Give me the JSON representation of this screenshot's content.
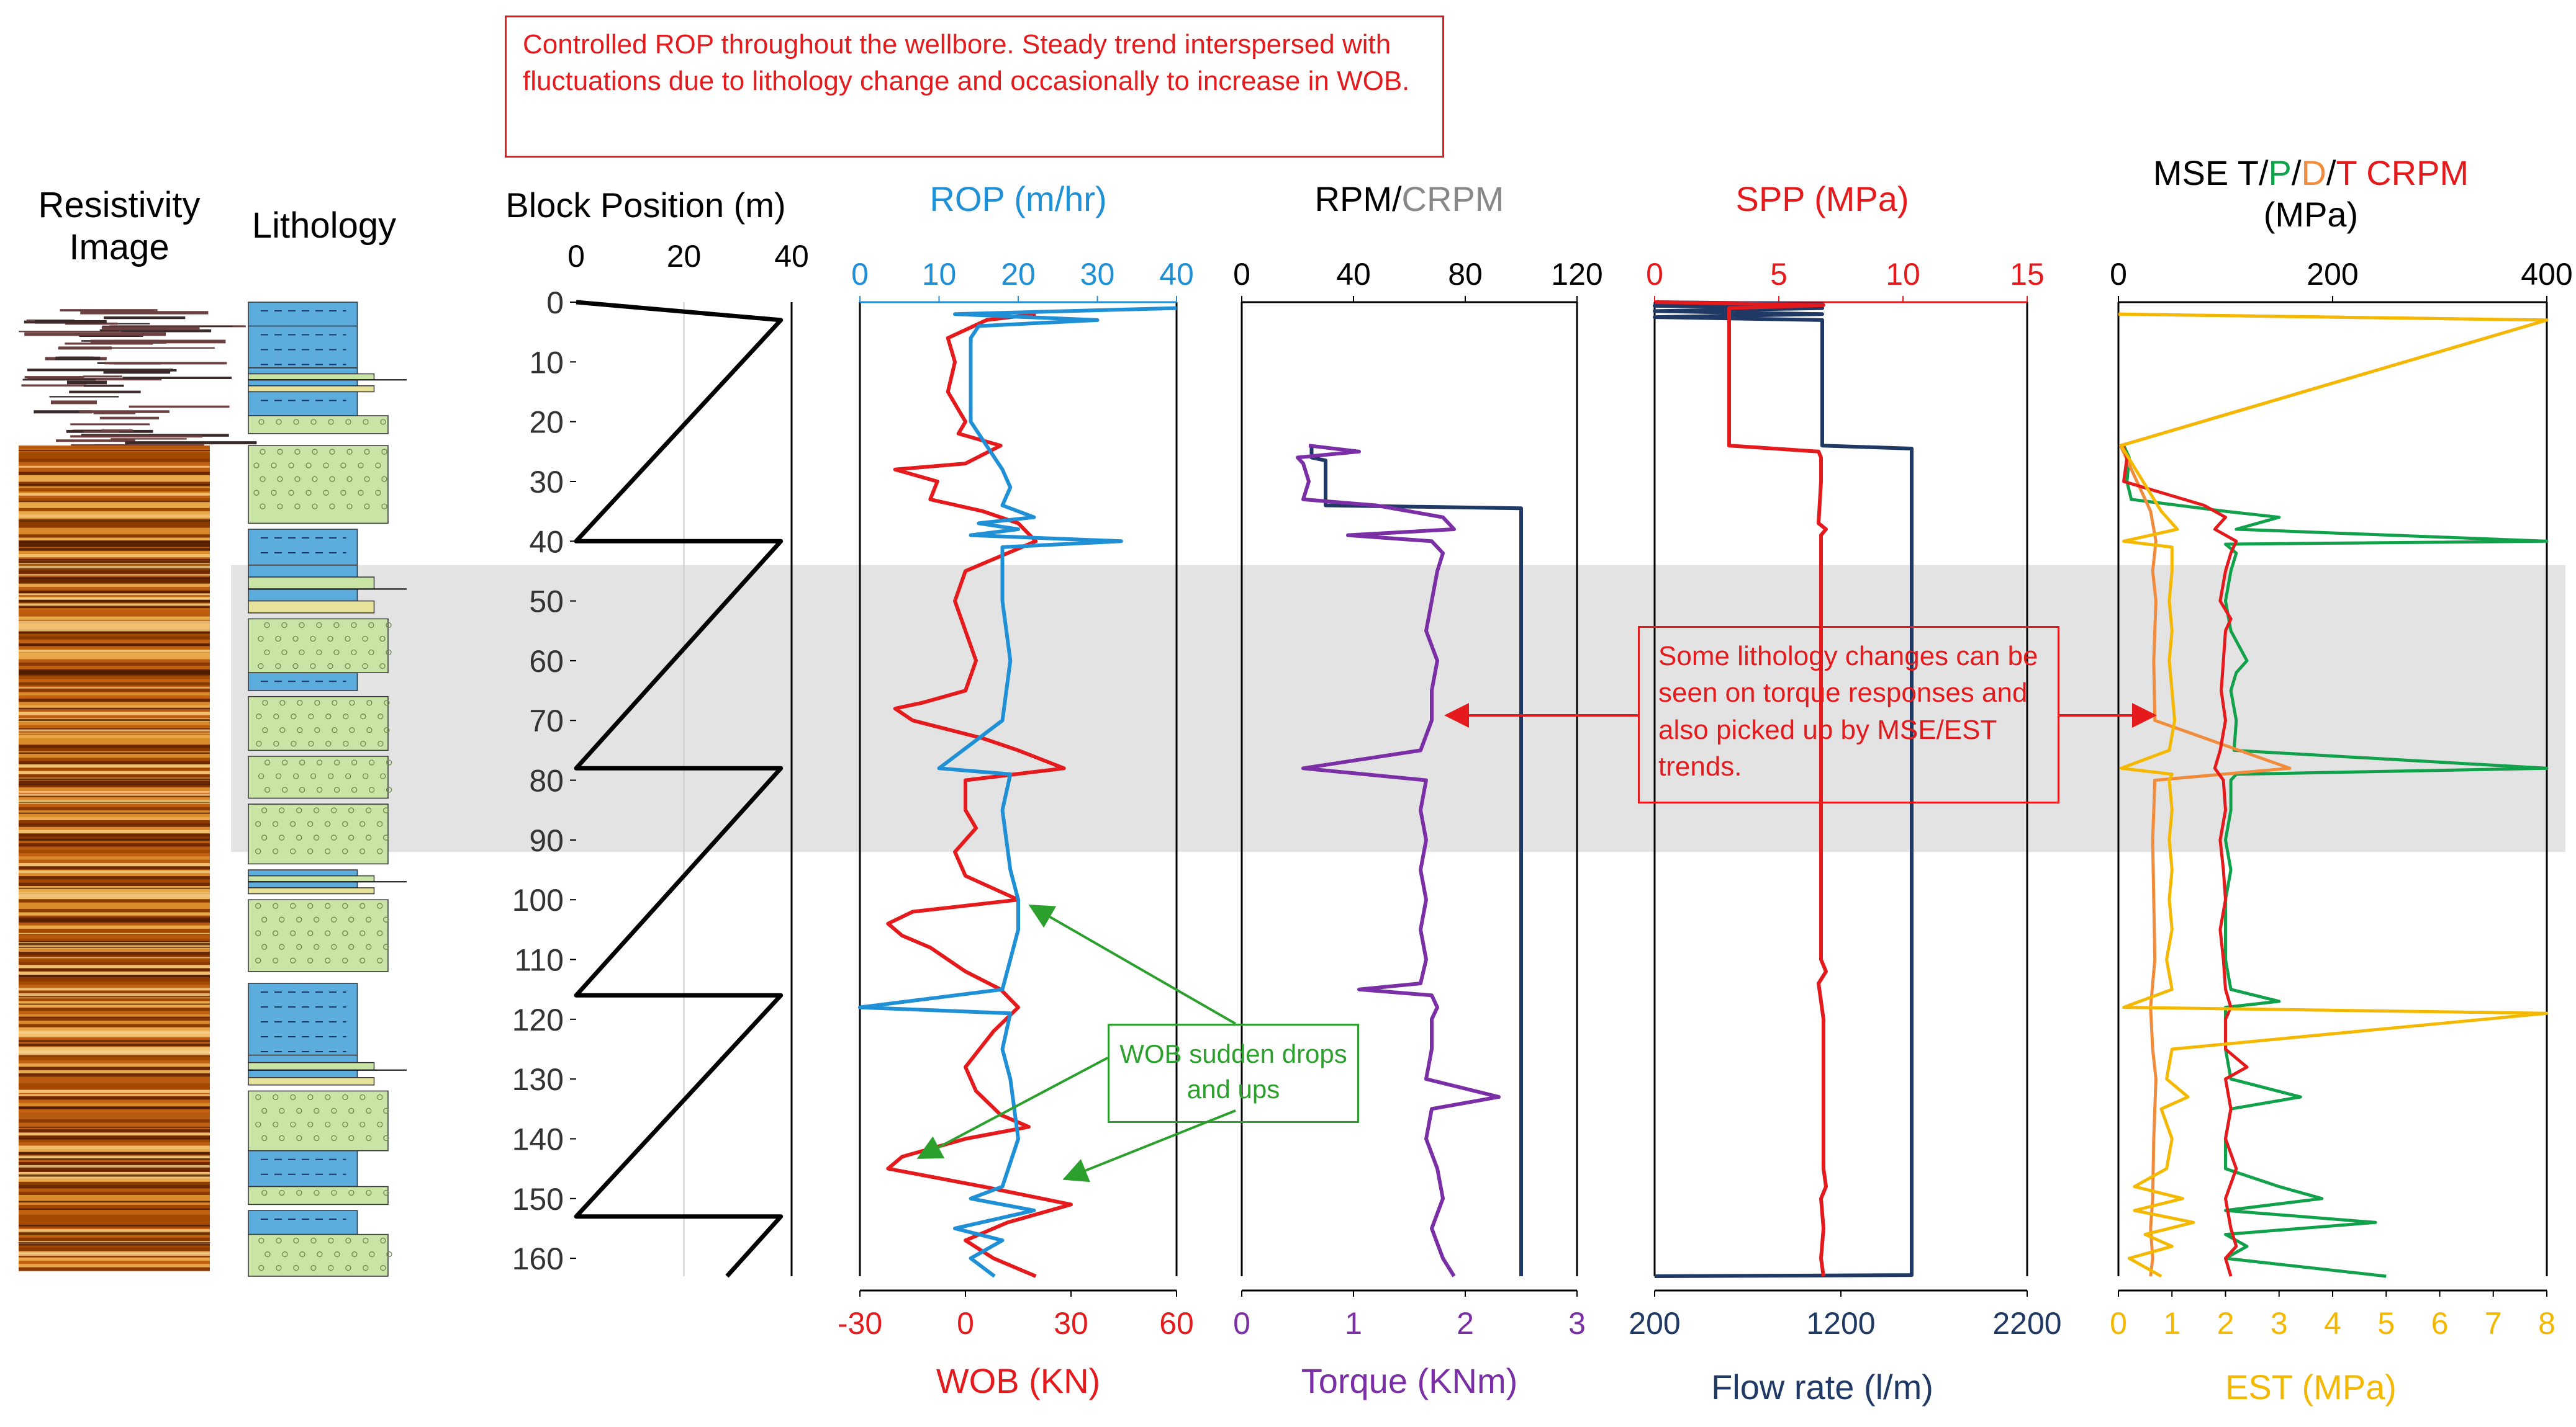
{
  "notes": {
    "rop": "Controlled ROP throughout the wellbore. Steady trend interspersed with fluctuations due to lithology change and occasionally to increase in WOB.",
    "lithology": "Some lithology changes can be seen on torque responses and also picked up by MSE/EST trends.",
    "wob": "WOB sudden drops and ups"
  },
  "colors": {
    "red": "#e41a1c",
    "blue": "#1f8fd6",
    "purple": "#7b2fa6",
    "navy": "#1f3864",
    "gray": "#888888",
    "orange": "#f08c3c",
    "green": "#12a14b",
    "gold": "#f5b800",
    "black": "#000000",
    "shale": "#5cacde",
    "sand": "#c9e5a6",
    "highlight": "#d9d9d9"
  },
  "chart_data": {
    "type": "line",
    "depth_axis": {
      "ylim": [
        0,
        163
      ],
      "ticks": [
        0,
        10,
        20,
        30,
        40,
        50,
        60,
        70,
        80,
        90,
        100,
        110,
        120,
        130,
        140,
        150,
        160
      ]
    },
    "highlight_depth_range": [
      44,
      92
    ],
    "resistivity_image": {
      "title": "Resistivity Image"
    },
    "lithology": {
      "title": "Lithology",
      "layers": [
        {
          "top": 0,
          "base": 4,
          "type": "shale"
        },
        {
          "top": 4,
          "base": 11,
          "type": "shale"
        },
        {
          "top": 11,
          "base": 15,
          "type": "mixed"
        },
        {
          "top": 15,
          "base": 19,
          "type": "shale"
        },
        {
          "top": 19,
          "base": 22,
          "type": "sand"
        },
        {
          "top": 24,
          "base": 37,
          "type": "sand"
        },
        {
          "top": 38,
          "base": 44,
          "type": "shale"
        },
        {
          "top": 44,
          "base": 52,
          "type": "mixed"
        },
        {
          "top": 53,
          "base": 62,
          "type": "sand"
        },
        {
          "top": 62,
          "base": 65,
          "type": "shale"
        },
        {
          "top": 66,
          "base": 75,
          "type": "sand"
        },
        {
          "top": 76,
          "base": 83,
          "type": "sand"
        },
        {
          "top": 84,
          "base": 94,
          "type": "sand"
        },
        {
          "top": 95,
          "base": 99,
          "type": "mixed"
        },
        {
          "top": 100,
          "base": 112,
          "type": "sand"
        },
        {
          "top": 114,
          "base": 126,
          "type": "shale"
        },
        {
          "top": 126,
          "base": 131,
          "type": "mixed"
        },
        {
          "top": 132,
          "base": 142,
          "type": "sand"
        },
        {
          "top": 142,
          "base": 148,
          "type": "shale"
        },
        {
          "top": 148,
          "base": 151,
          "type": "sand"
        },
        {
          "top": 152,
          "base": 156,
          "type": "shale"
        },
        {
          "top": 156,
          "base": 163,
          "type": "sand"
        }
      ]
    },
    "block": {
      "title": "Block Position (m)",
      "xlim": [
        0,
        40
      ],
      "ticks": [
        0,
        20,
        40
      ],
      "series": [
        {
          "name": "Block Position",
          "depth": [
            0,
            3,
            3,
            40,
            40,
            78,
            78,
            116,
            116,
            153,
            153,
            163
          ],
          "values": [
            0,
            38,
            38,
            0,
            38,
            0,
            38,
            0,
            38,
            0,
            38,
            28
          ]
        }
      ]
    },
    "rop_wob": {
      "top_title": "ROP (m/hr)",
      "top_xlim": [
        0,
        40
      ],
      "top_ticks": [
        0,
        10,
        20,
        30,
        40
      ],
      "bottom_title": "WOB (KN)",
      "bottom_xlim": [
        -30,
        60
      ],
      "bottom_ticks": [
        -30,
        0,
        30,
        60
      ],
      "series": [
        {
          "name": "ROP",
          "axis": "top",
          "depth": [
            1,
            2,
            3,
            4,
            6,
            10,
            15,
            20,
            24,
            28,
            31,
            34,
            36,
            37,
            38,
            39,
            40,
            41,
            42,
            50,
            60,
            70,
            78,
            79,
            85,
            95,
            100,
            105,
            110,
            115,
            118,
            119,
            125,
            130,
            140,
            148,
            150,
            152,
            155,
            157,
            160,
            163
          ],
          "values": [
            40,
            12,
            30,
            15,
            14,
            14,
            14,
            14,
            16,
            18,
            19,
            18,
            22,
            15,
            20,
            14,
            33,
            18,
            18,
            18,
            19,
            18,
            10,
            19,
            18,
            19,
            20,
            20,
            19,
            18,
            0,
            19,
            18,
            19,
            20,
            18,
            14,
            22,
            12,
            18,
            14,
            17
          ]
        },
        {
          "name": "WOB",
          "axis": "bottom",
          "depth": [
            2,
            3,
            6,
            10,
            15,
            20,
            22,
            24,
            27,
            28,
            30,
            33,
            35,
            37,
            40,
            45,
            50,
            55,
            60,
            65,
            67,
            68,
            70,
            73,
            75,
            78,
            80,
            85,
            88,
            92,
            96,
            100,
            102,
            104,
            106,
            108,
            112,
            115,
            118,
            122,
            128,
            132,
            136,
            138,
            140,
            143,
            145,
            148,
            151,
            154,
            157,
            160,
            163
          ],
          "values": [
            20,
            6,
            -5,
            -3,
            -5,
            0,
            -2,
            10,
            0,
            -20,
            -8,
            -10,
            5,
            15,
            20,
            0,
            -3,
            0,
            3,
            0,
            -12,
            -20,
            -15,
            5,
            15,
            28,
            0,
            0,
            3,
            -3,
            0,
            15,
            -15,
            -22,
            -18,
            -10,
            0,
            10,
            15,
            8,
            0,
            3,
            10,
            18,
            0,
            -18,
            -22,
            5,
            30,
            12,
            0,
            8,
            20
          ]
        }
      ]
    },
    "rpm_torque": {
      "top_title": "RPM/CRPM",
      "top_title_parts": [
        "RPM/",
        "CRPM"
      ],
      "top_xlim": [
        0,
        120
      ],
      "top_ticks": [
        0,
        40,
        80,
        120
      ],
      "bottom_title": "Torque (KNm)",
      "bottom_xlim": [
        0,
        3
      ],
      "bottom_ticks": [
        0,
        1,
        2,
        3
      ],
      "series": [
        {
          "name": "RPM",
          "axis": "top",
          "color": "navy",
          "depth": [
            24,
            26,
            26.5,
            34,
            34.5,
            40,
            40.5,
            78,
            78.5,
            163
          ],
          "values": [
            25,
            25,
            30,
            30,
            100,
            100,
            100,
            100,
            100,
            100
          ]
        },
        {
          "name": "Torque",
          "axis": "bottom",
          "color": "purple",
          "depth": [
            24,
            25,
            26,
            27,
            30,
            33,
            34,
            36,
            38,
            39,
            40,
            42,
            45,
            50,
            55,
            60,
            65,
            70,
            75,
            78,
            80,
            85,
            90,
            95,
            100,
            105,
            110,
            114,
            115,
            116,
            118,
            120,
            125,
            130,
            133,
            135,
            140,
            145,
            150,
            155,
            160,
            163
          ],
          "values": [
            0.6,
            1.05,
            0.5,
            0.55,
            0.6,
            0.55,
            1.2,
            1.8,
            1.9,
            0.95,
            1.7,
            1.8,
            1.75,
            1.7,
            1.65,
            1.75,
            1.7,
            1.7,
            1.6,
            0.55,
            1.65,
            1.6,
            1.65,
            1.6,
            1.65,
            1.6,
            1.65,
            1.6,
            1.05,
            1.7,
            1.75,
            1.7,
            1.7,
            1.65,
            2.3,
            1.7,
            1.65,
            1.75,
            1.8,
            1.7,
            1.8,
            1.9
          ]
        }
      ]
    },
    "spp_flow": {
      "top_title": "SPP (MPa)",
      "top_xlim": [
        0,
        15
      ],
      "top_ticks": [
        0,
        5,
        10,
        15
      ],
      "bottom_title": "Flow rate (l/m)",
      "bottom_xlim": [
        200,
        2200
      ],
      "bottom_ticks": [
        200,
        1200,
        2200
      ],
      "series": [
        {
          "name": "SPP",
          "axis": "top",
          "color": "red",
          "depth": [
            0,
            0.5,
            1,
            2,
            3,
            24,
            25,
            26,
            30,
            37,
            38,
            39,
            40,
            50,
            60,
            80,
            100,
            110,
            112,
            114,
            120,
            130,
            145,
            148,
            150,
            155,
            160,
            163
          ],
          "values": [
            0,
            6.8,
            3,
            3,
            3,
            3,
            6.6,
            6.7,
            6.7,
            6.6,
            6.9,
            6.7,
            6.7,
            6.7,
            6.7,
            6.7,
            6.7,
            6.7,
            6.9,
            6.6,
            6.8,
            6.8,
            6.8,
            6.9,
            6.7,
            6.8,
            6.7,
            6.8
          ]
        },
        {
          "name": "Flow rate",
          "axis": "bottom",
          "color": "navy",
          "depth": [
            0,
            0.3,
            0.6,
            1,
            1.5,
            2,
            2.5,
            3,
            24,
            24.5,
            162.8,
            163
          ],
          "values": [
            200,
            1100,
            200,
            1100,
            200,
            1100,
            200,
            1100,
            1100,
            1580,
            1580,
            200
          ]
        }
      ]
    },
    "mse_est": {
      "top_title": "MSE T/P/D/T CRPM",
      "top_title_parts": [
        "MSE T/",
        "P",
        "/",
        "D",
        "/",
        "T CRPM"
      ],
      "top_unit": "(MPa)",
      "top_xlim": [
        0,
        400
      ],
      "top_ticks": [
        0,
        200,
        400
      ],
      "bottom_title": "EST (MPa)",
      "bottom_xlim": [
        0,
        8
      ],
      "bottom_ticks": [
        0,
        1,
        2,
        3,
        4,
        5,
        6,
        7,
        8
      ],
      "series": [
        {
          "name": "MSE P",
          "axis": "top",
          "color": "green",
          "depth": [
            24,
            26,
            30,
            33,
            35,
            36,
            38,
            40,
            40.5,
            42,
            45,
            50,
            55,
            60,
            62,
            65,
            70,
            75,
            78,
            79,
            80,
            85,
            90,
            95,
            100,
            105,
            110,
            115,
            117,
            118,
            120,
            125,
            130,
            133,
            135,
            140,
            145,
            148,
            150,
            152,
            154,
            156,
            158,
            160,
            163
          ],
          "values": [
            5,
            10,
            8,
            12,
            100,
            150,
            110,
            400,
            100,
            110,
            105,
            100,
            105,
            120,
            110,
            105,
            110,
            108,
            400,
            110,
            105,
            105,
            100,
            105,
            100,
            100,
            100,
            105,
            150,
            100,
            100,
            100,
            105,
            170,
            105,
            100,
            100,
            150,
            190,
            100,
            240,
            100,
            120,
            100,
            250
          ]
        },
        {
          "name": "MSE D",
          "axis": "top",
          "color": "orange",
          "depth": [
            2,
            3,
            24,
            35,
            40,
            45,
            50,
            60,
            70,
            78,
            80,
            90,
            100,
            110,
            118,
            125,
            130,
            140,
            150,
            155,
            160,
            163
          ],
          "values": [
            0,
            400,
            2,
            30,
            35,
            32,
            35,
            33,
            34,
            160,
            34,
            32,
            33,
            34,
            30,
            32,
            35,
            33,
            32,
            30,
            32,
            30
          ]
        },
        {
          "name": "MSE T CRPM",
          "axis": "top",
          "color": "red",
          "depth": [
            24,
            26,
            30,
            34,
            36,
            38,
            40,
            42,
            45,
            50,
            53,
            55,
            60,
            65,
            70,
            75,
            78,
            80,
            85,
            90,
            95,
            100,
            105,
            110,
            115,
            118,
            120,
            125,
            128,
            130,
            135,
            140,
            145,
            150,
            155,
            158,
            160,
            163
          ],
          "values": [
            4,
            8,
            5,
            80,
            100,
            90,
            110,
            105,
            100,
            95,
            105,
            100,
            98,
            96,
            100,
            95,
            90,
            98,
            100,
            95,
            98,
            100,
            95,
            98,
            100,
            105,
            100,
            100,
            120,
            100,
            105,
            100,
            110,
            100,
            105,
            110,
            100,
            105
          ]
        },
        {
          "name": "EST",
          "axis": "bottom",
          "color": "gold",
          "depth": [
            2,
            3,
            24,
            35,
            38,
            40,
            41,
            45,
            50,
            55,
            60,
            65,
            70,
            75,
            78,
            79,
            80,
            85,
            90,
            95,
            100,
            105,
            110,
            115,
            118,
            119,
            125,
            130,
            133,
            135,
            140,
            145,
            148,
            150,
            152,
            154,
            156,
            158,
            160,
            163
          ],
          "values": [
            0,
            8,
            0.05,
            0.8,
            1.1,
            0.1,
            1.0,
            1.0,
            0.95,
            1.0,
            0.95,
            1.0,
            1.05,
            0.95,
            0.05,
            1.0,
            0.95,
            1.0,
            0.95,
            1.0,
            0.95,
            1.0,
            0.9,
            1.0,
            0.1,
            8,
            1.0,
            0.9,
            1.3,
            0.8,
            1.0,
            0.9,
            0.3,
            1.2,
            0.3,
            1.4,
            0.5,
            1.0,
            0.2,
            0.8
          ]
        }
      ]
    }
  }
}
